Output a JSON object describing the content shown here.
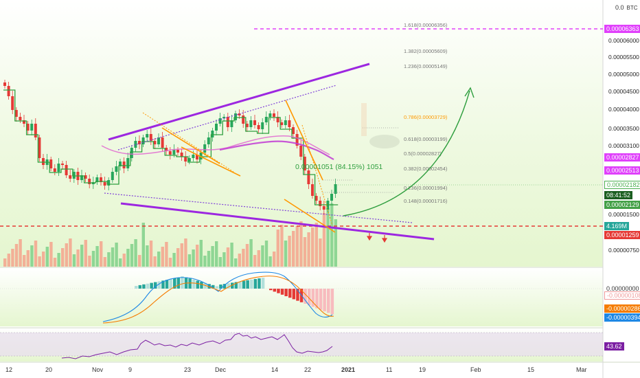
{
  "pair": {
    "currency": "BTC"
  },
  "top_scale_value": "0.0",
  "price_axis": [
    "0.00006000",
    "0.00005500",
    "0.00005000",
    "0.00004500",
    "0.00004000",
    "0.00003500",
    "0.00003100",
    "0.00001500",
    "0.00000750"
  ],
  "price_tags": [
    {
      "text": "0.00006363",
      "color": "#e040fb",
      "style": "solid"
    },
    {
      "text": "0.00002827",
      "color": "#e040fb",
      "style": "solid"
    },
    {
      "text": "0.00002513",
      "color": "#e040fb",
      "style": "solid"
    },
    {
      "text": "0.00002182",
      "color": "#4caf50",
      "style": "outline"
    },
    {
      "text": "08:41:52",
      "color": "#1b5e20",
      "style": "solid"
    },
    {
      "text": "0.00002129",
      "color": "#43a047",
      "style": "solid"
    },
    {
      "text": "4.169M",
      "color": "#26a69a",
      "style": "solid"
    },
    {
      "text": "0.00001259",
      "color": "#e53935",
      "style": "solid"
    },
    {
      "text": "0.00000000",
      "color": "#333333",
      "style": "plain"
    },
    {
      "text": "-0.00000108",
      "color": "#ef9a9a",
      "style": "outline"
    },
    {
      "text": "-0.00000286",
      "color": "#f57c00",
      "style": "solid"
    },
    {
      "text": "-0.00000394",
      "color": "#1e88e5",
      "style": "solid"
    },
    {
      "text": "43.62",
      "color": "#7b1fa2",
      "style": "solid"
    }
  ],
  "fib_levels": [
    {
      "label": "1.618(0.00006356)",
      "color": "#ff9800"
    },
    {
      "label": "1.382(0.00005609)",
      "color": "#888888"
    },
    {
      "label": "1.236(0.00005149)",
      "color": "#888888"
    },
    {
      "label": "0.786(0.00003729)",
      "color": "#ff9800"
    },
    {
      "label": "0.618(0.00003199)",
      "color": "#888888"
    },
    {
      "label": "0.5(0.00002827)",
      "color": "#888888"
    },
    {
      "label": "0.382(0.00002454)",
      "color": "#888888"
    },
    {
      "label": "0.236(0.00001994)",
      "color": "#888888"
    },
    {
      "label": "0.148(0.00001716)",
      "color": "#888888"
    }
  ],
  "measure_label": "0.00001051 (84.15%) 1051",
  "time_axis": [
    "12",
    "20",
    "Nov",
    "9",
    "23",
    "Dec",
    "14",
    "22",
    "2021",
    "11",
    "19",
    "Feb",
    "15",
    "Mar"
  ],
  "colors": {
    "up": "#26a65b",
    "down": "#e53935",
    "background_top": "#ffffff",
    "background_bottom": "#e8f7d4"
  }
}
